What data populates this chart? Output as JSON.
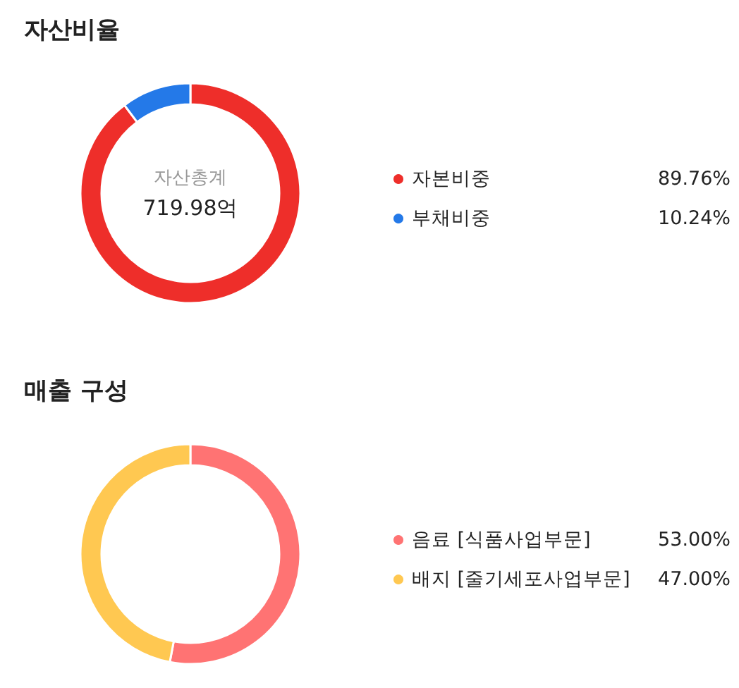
{
  "chart_data": [
    {
      "type": "donut",
      "title": "자산비율",
      "categories": [
        "자본비중",
        "부채비중"
      ],
      "values": [
        89.76,
        10.24
      ],
      "colors": [
        "#ee2e2a",
        "#2479e8"
      ],
      "value_labels": [
        "89.76%",
        "10.24%"
      ],
      "legend": "right",
      "annotations": [
        "자산총계",
        "719.98억"
      ]
    },
    {
      "type": "donut",
      "title": "매출 구성",
      "categories": [
        "음료 [식품사업부문]",
        "배지 [줄기세포사업부문]"
      ],
      "values": [
        53,
        47
      ],
      "colors": [
        "#ff7373",
        "#ffc851"
      ],
      "value_labels": [
        "53.00%",
        "47.00%"
      ],
      "legend": "right"
    }
  ]
}
